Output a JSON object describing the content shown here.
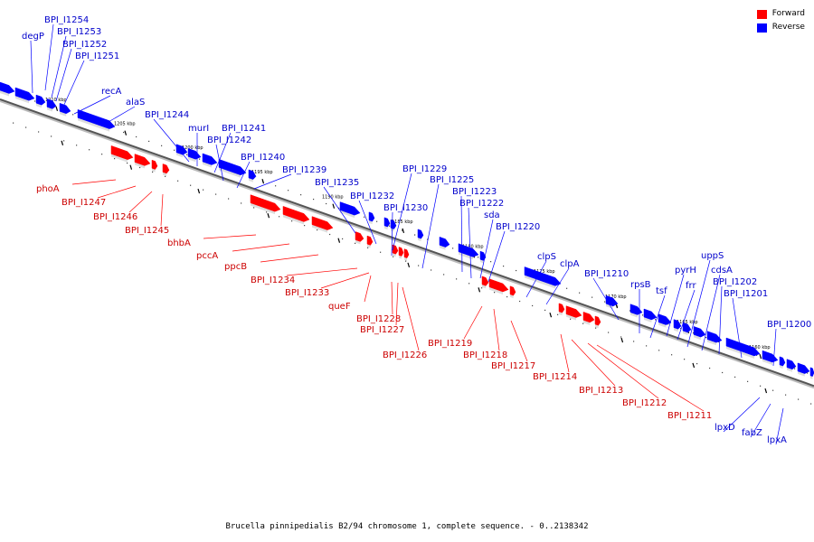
{
  "colors": {
    "forward": "#ff0000",
    "reverse": "#0000ff",
    "axis": "#555555"
  },
  "legend": [
    {
      "label": "Forward",
      "color": "#ff0000"
    },
    {
      "label": "Reverse",
      "color": "#0000ff"
    }
  ],
  "caption": "Brucella pinnipedialis B2/94 chromosome 1, complete sequence. - 0..2138342",
  "ticks": [
    "1210 kbp",
    "1205 kbp",
    "1200 kbp",
    "1195 kbp",
    "1190 kbp",
    "1185 kbp",
    "1180 kbp",
    "1175 kbp",
    "1170 kbp",
    "1165 kbp",
    "1160 kbp"
  ],
  "reverse_genes": [
    "degP",
    "BPI_I1254",
    "BPI_I1253",
    "BPI_I1252",
    "BPI_I1251",
    "recA",
    "alaS",
    "BPI_I1244",
    "murI",
    "BPI_I1241",
    "BPI_I1242",
    "BPI_I1240",
    "BPI_I1239",
    "BPI_I1235",
    "BPI_I1232",
    "BPI_I1229",
    "BPI_I1230",
    "BPI_I1225",
    "BPI_I1223",
    "BPI_I1222",
    "sda",
    "BPI_I1220",
    "clpS",
    "clpA",
    "BPI_I1210",
    "rpsB",
    "tsf",
    "pyrH",
    "frr",
    "uppS",
    "cdsA",
    "BPI_I1202",
    "BPI_I1201",
    "BPI_I1200",
    "lpxD",
    "fabZ",
    "lpxA"
  ],
  "forward_genes": [
    "phoA",
    "BPI_I1247",
    "BPI_I1246",
    "BPI_I1245",
    "bhbA",
    "pccA",
    "ppcB",
    "BPI_I1234",
    "BPI_I1233",
    "queF",
    "BPI_I1228",
    "BPI_I1227",
    "BPI_I1226",
    "BPI_I1219",
    "BPI_I1218",
    "BPI_I1217",
    "BPI_I1214",
    "BPI_I1213",
    "BPI_I1212",
    "BPI_I1211"
  ]
}
